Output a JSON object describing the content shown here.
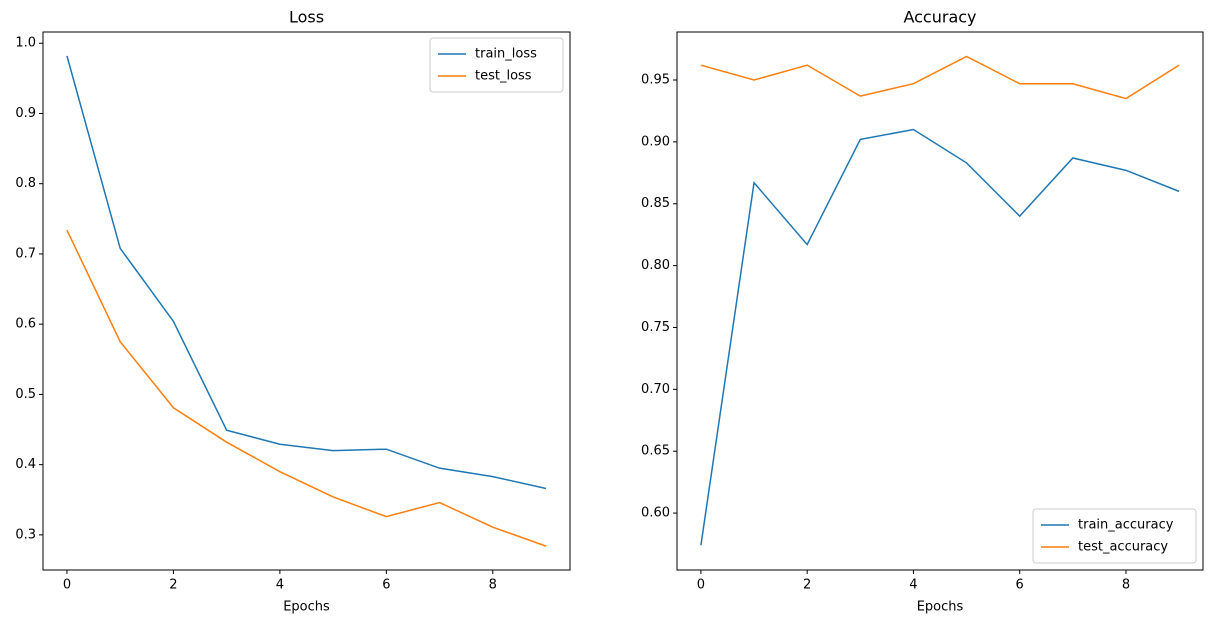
{
  "chart_data": [
    {
      "type": "line",
      "title": "Loss",
      "x_label": "Epochs",
      "x": [
        0,
        1,
        2,
        3,
        4,
        5,
        6,
        7,
        8,
        9
      ],
      "series": [
        {
          "name": "train_loss",
          "color": "#1f77b4",
          "values": [
            0.982,
            0.708,
            0.604,
            0.449,
            0.429,
            0.42,
            0.422,
            0.395,
            0.383,
            0.366
          ]
        },
        {
          "name": "test_loss",
          "color": "#ff7f0e",
          "values": [
            0.734,
            0.575,
            0.481,
            0.432,
            0.39,
            0.354,
            0.326,
            0.346,
            0.311,
            0.284
          ]
        }
      ],
      "xlim": [
        -0.45,
        9.45
      ],
      "xticks": [
        0,
        2,
        4,
        6,
        8
      ],
      "ylim": [
        0.25,
        1.016
      ],
      "yticks": [
        0.3,
        0.4,
        0.5,
        0.6,
        0.7,
        0.8,
        0.9,
        {
          "value": 1,
          "label": "1.0"
        }
      ],
      "legend": "upper right"
    },
    {
      "type": "line",
      "title": "Accuracy",
      "x_label": "Epochs",
      "x": [
        0,
        1,
        2,
        3,
        4,
        5,
        6,
        7,
        8,
        9
      ],
      "series": [
        {
          "name": "train_accuracy",
          "color": "#1f77b4",
          "values": [
            0.574,
            0.867,
            0.817,
            0.902,
            0.91,
            0.883,
            0.84,
            0.887,
            0.877,
            0.86
          ]
        },
        {
          "name": "test_accuracy",
          "color": "#ff7f0e",
          "values": [
            0.962,
            0.95,
            0.962,
            0.937,
            0.947,
            0.969,
            0.947,
            0.947,
            0.935,
            0.962
          ]
        }
      ],
      "xlim": [
        -0.45,
        9.45
      ],
      "xticks": [
        0,
        2,
        4,
        6,
        8
      ],
      "ylim": [
        0.554,
        0.9888
      ],
      "yticks": [
        {
          "value": 0.6,
          "label": "0.60"
        },
        0.65,
        {
          "value": 0.7,
          "label": "0.70"
        },
        0.75,
        {
          "value": 0.8,
          "label": "0.80"
        },
        0.85,
        {
          "value": 0.9,
          "label": "0.90"
        },
        0.95
      ],
      "legend": "lower right"
    }
  ]
}
